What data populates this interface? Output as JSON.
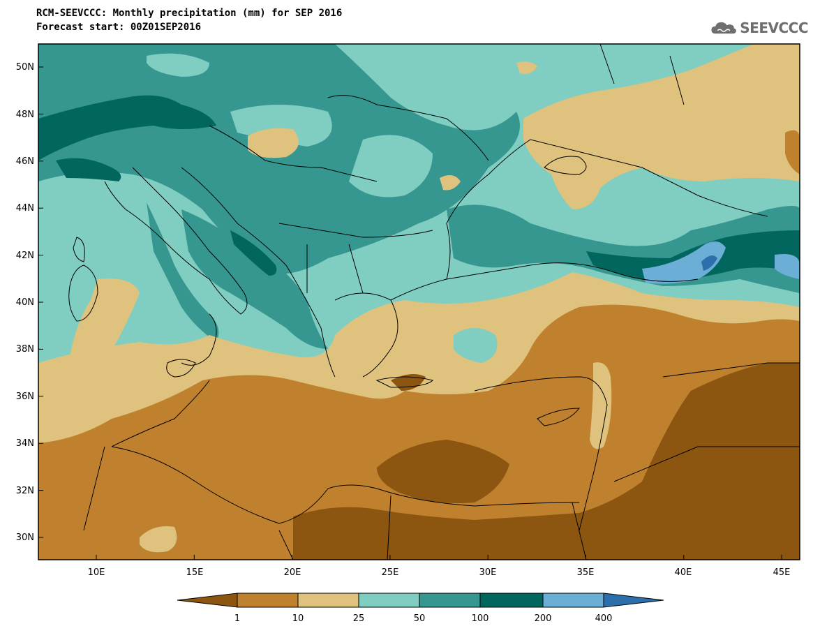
{
  "header": {
    "title": "RCM-SEEVCCC: Monthly precipitation (mm) for SEP 2016",
    "subtitle": "Forecast start: 00Z01SEP2016",
    "logo_text": "SEEVCCC",
    "logo_icon": "cloud-icon"
  },
  "map": {
    "lat_ticks": [
      "50N",
      "48N",
      "46N",
      "44N",
      "42N",
      "40N",
      "38N",
      "36N",
      "34N",
      "32N",
      "30N"
    ],
    "lon_ticks": [
      "10E",
      "15E",
      "20E",
      "25E",
      "30E",
      "35E",
      "40E",
      "45E"
    ],
    "extent": {
      "lon": [
        7,
        46
      ],
      "lat": [
        29,
        51
      ]
    }
  },
  "legend": {
    "labels": [
      "1",
      "10",
      "25",
      "50",
      "100",
      "200",
      "400"
    ],
    "colors": [
      "#8c5510",
      "#bf812d",
      "#dfc27d",
      "#80cdc1",
      "#35978f",
      "#01665e",
      "#6baed6",
      "#2c6faa"
    ]
  },
  "colors": {
    "sea": "#80cdc1",
    "land_teal": "#35978f",
    "dark_teal": "#01665e",
    "light_brown": "#dfc27d",
    "mid_brown": "#bf812d",
    "dark_brown": "#8c5510",
    "blue": "#6baed6"
  }
}
